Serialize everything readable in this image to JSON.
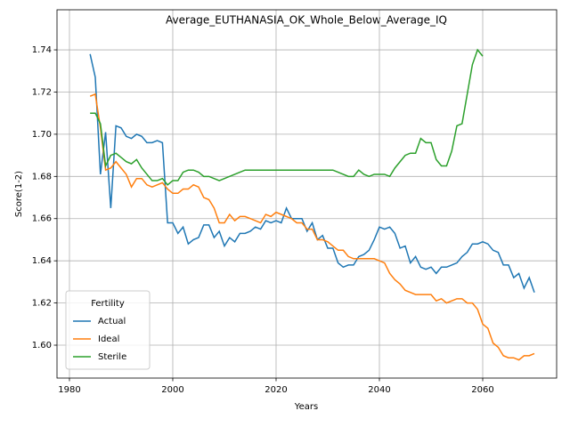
{
  "chart_data": {
    "type": "line",
    "title": "Average_EUTHANASIA_OK_Whole_Below_Average_IQ",
    "xlabel": "Years",
    "ylabel": "Score(1-2)",
    "x": [
      1984,
      1985,
      1986,
      1987,
      1988,
      1989,
      1990,
      1991,
      1992,
      1993,
      1994,
      1995,
      1996,
      1997,
      1998,
      1999,
      2000,
      2001,
      2002,
      2003,
      2004,
      2005,
      2006,
      2007,
      2008,
      2009,
      2010,
      2011,
      2012,
      2013,
      2014,
      2015,
      2016,
      2017,
      2018,
      2019,
      2020,
      2021,
      2022,
      2023,
      2024,
      2025,
      2026,
      2027,
      2028,
      2029,
      2030,
      2031,
      2032,
      2033,
      2034,
      2035,
      2036,
      2037,
      2038,
      2039,
      2040,
      2041,
      2042,
      2043,
      2044,
      2045,
      2046,
      2047,
      2048,
      2049,
      2050,
      2051,
      2052,
      2053,
      2054,
      2055,
      2056,
      2057,
      2058,
      2059,
      2060,
      2061,
      2062,
      2063,
      2064,
      2065,
      2066,
      2067,
      2068,
      2069,
      2070
    ],
    "series": [
      {
        "name": "Actual",
        "color": "#1f77b4",
        "values": [
          1.738,
          1.727,
          1.681,
          1.701,
          1.665,
          1.704,
          1.703,
          1.699,
          1.698,
          1.7,
          1.699,
          1.696,
          1.696,
          1.697,
          1.696,
          1.658,
          1.658,
          1.653,
          1.656,
          1.648,
          1.65,
          1.651,
          1.657,
          1.657,
          1.651,
          1.654,
          1.647,
          1.651,
          1.649,
          1.653,
          1.653,
          1.654,
          1.656,
          1.655,
          1.659,
          1.658,
          1.659,
          1.658,
          1.665,
          1.66,
          1.66,
          1.66,
          1.654,
          1.658,
          1.65,
          1.652,
          1.646,
          1.646,
          1.639,
          1.637,
          1.638,
          1.638,
          1.642,
          1.643,
          1.645,
          1.65,
          1.656,
          1.655,
          1.656,
          1.653,
          1.646,
          1.647,
          1.639,
          1.642,
          1.637,
          1.636,
          1.637,
          1.634,
          1.637,
          1.637,
          1.638,
          1.639,
          1.642,
          1.644,
          1.648,
          1.648,
          1.649,
          1.648,
          1.645,
          1.644,
          1.638,
          1.638,
          1.632,
          1.634,
          1.627,
          1.632,
          1.625
        ]
      },
      {
        "name": "Ideal",
        "color": "#ff7f0e",
        "values": [
          1.718,
          1.719,
          1.703,
          1.683,
          1.684,
          1.687,
          1.684,
          1.681,
          1.675,
          1.679,
          1.679,
          1.676,
          1.675,
          1.676,
          1.677,
          1.674,
          1.672,
          1.672,
          1.674,
          1.674,
          1.676,
          1.675,
          1.67,
          1.669,
          1.665,
          1.658,
          1.658,
          1.662,
          1.659,
          1.661,
          1.661,
          1.66,
          1.659,
          1.658,
          1.662,
          1.661,
          1.663,
          1.662,
          1.661,
          1.66,
          1.658,
          1.658,
          1.655,
          1.655,
          1.65,
          1.65,
          1.649,
          1.647,
          1.645,
          1.645,
          1.642,
          1.641,
          1.641,
          1.641,
          1.641,
          1.641,
          1.64,
          1.639,
          1.634,
          1.631,
          1.629,
          1.626,
          1.625,
          1.624,
          1.624,
          1.624,
          1.624,
          1.621,
          1.622,
          1.62,
          1.621,
          1.622,
          1.622,
          1.62,
          1.62,
          1.617,
          1.61,
          1.608,
          1.601,
          1.599,
          1.595,
          1.594,
          1.594,
          1.593,
          1.595,
          1.595,
          1.596
        ]
      },
      {
        "name": "Sterile",
        "color": "#2ca02c",
        "values": [
          1.71,
          1.71,
          1.705,
          1.685,
          1.69,
          1.691,
          1.689,
          1.687,
          1.686,
          1.688,
          1.684,
          1.681,
          1.678,
          1.678,
          1.679,
          1.676,
          1.678,
          1.678,
          1.682,
          1.683,
          1.683,
          1.682,
          1.68,
          1.68,
          1.679,
          1.678,
          1.679,
          1.68,
          1.681,
          1.682,
          1.683,
          1.683,
          1.683,
          1.683,
          1.683,
          1.683,
          1.683,
          1.683,
          1.683,
          1.683,
          1.683,
          1.683,
          1.683,
          1.683,
          1.683,
          1.683,
          1.683,
          1.683,
          1.682,
          1.681,
          1.68,
          1.68,
          1.683,
          1.681,
          1.68,
          1.681,
          1.681,
          1.681,
          1.68,
          1.684,
          1.687,
          1.69,
          1.691,
          1.691,
          1.698,
          1.696,
          1.696,
          1.688,
          1.685,
          1.685,
          1.692,
          1.704,
          1.705,
          1.719,
          1.733,
          1.74,
          1.737,
          null,
          null,
          null,
          null,
          null,
          null,
          null,
          null,
          null,
          null
        ]
      }
    ],
    "xlim": [
      1977.59,
      2074.31
    ],
    "xticks": [
      1980,
      2000,
      2020,
      2040,
      2060
    ],
    "ylim": [
      1.5844,
      1.759
    ],
    "yticks": [
      {
        "value": 1.6,
        "label": "1.60"
      },
      1.62,
      1.64,
      1.66,
      1.68,
      {
        "value": 1.7,
        "label": "1.70"
      },
      1.72,
      1.74
    ],
    "grid": true,
    "legend_title": "Fertility",
    "legend_loc": "lower left"
  }
}
